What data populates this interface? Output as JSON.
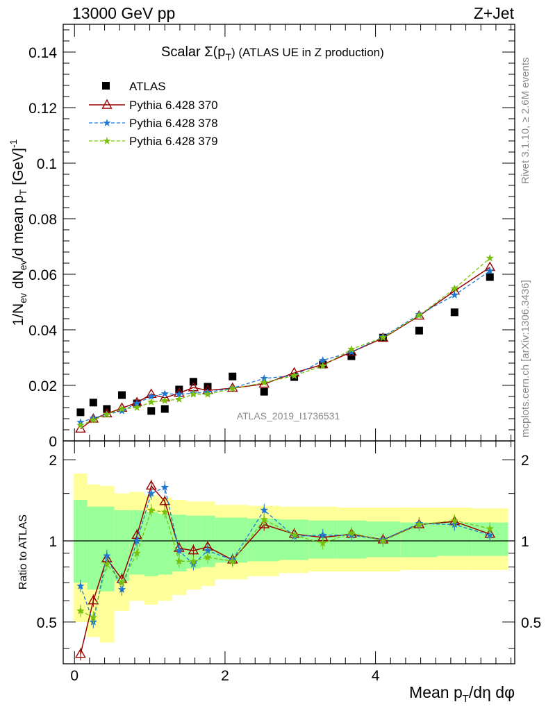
{
  "header": {
    "left": "13000 GeV pp",
    "right": "Z+Jet"
  },
  "side_text": {
    "rivet": "Rivet 3.1.10, ≥ 2.6M events",
    "mcplots": "mcplots.cern.ch [arXiv:1306.3436]"
  },
  "watermark": "ATLAS_2019_I1736531",
  "colors": {
    "data": "#000000",
    "s370": "#990000",
    "s378": "#1f77d4",
    "s379": "#79c00a",
    "band_inner": "#99ff99",
    "band_outer": "#ffff99"
  },
  "chart_data": [
    {
      "type": "scatter",
      "title": "Scalar Σ(p_T) (ATLAS UE in Z production)",
      "title_parts": {
        "a": "Scalar ",
        "sigma": "Σ(p",
        "sub": "T",
        "b": ") (ATLAS UE in Z production)"
      },
      "ylabel": "1/N_ev dN_ev/d mean p_T [GeV]^-1",
      "ylabel_parts": {
        "a": "1/N",
        "s1": "ev",
        "b": " dN",
        "s2": "ev",
        "c": "/d mean p",
        "s3": "T",
        "d": " [GeV]",
        "sup": "-1"
      },
      "xlim": [
        -0.15,
        5.85
      ],
      "ylim": [
        0,
        0.15
      ],
      "yticks": [
        0,
        0.02,
        0.04,
        0.06,
        0.08,
        0.1,
        0.12,
        0.14
      ],
      "ytick_labels": [
        "0",
        "0.02",
        "0.04",
        "0.06",
        "0.08",
        "0.1",
        "0.12",
        "0.14"
      ],
      "x": [
        0.08,
        0.25,
        0.43,
        0.63,
        0.83,
        1.02,
        1.2,
        1.39,
        1.58,
        1.77,
        2.1,
        2.52,
        2.92,
        3.3,
        3.68,
        4.1,
        4.58,
        5.05,
        5.52
      ],
      "series": [
        {
          "name": "ATLAS",
          "marker": "square",
          "values": [
            0.0103,
            0.0138,
            0.0115,
            0.0165,
            0.0135,
            0.0108,
            0.0115,
            0.0185,
            0.0213,
            0.0195,
            0.0232,
            0.0177,
            0.023,
            0.0275,
            0.0305,
            0.0372,
            0.0397,
            0.0463,
            0.059
          ]
        },
        {
          "name": "Pythia 6.428 370",
          "marker": "triangle",
          "values": [
            0.0043,
            0.0079,
            0.0098,
            0.0118,
            0.0138,
            0.0168,
            0.0155,
            0.0172,
            0.0192,
            0.0182,
            0.019,
            0.0205,
            0.0245,
            0.0275,
            0.032,
            0.037,
            0.045,
            0.054,
            0.0625
          ]
        },
        {
          "name": "Pythia 6.428 378",
          "marker": "star",
          "values": [
            0.0067,
            0.0082,
            0.0095,
            0.0108,
            0.0135,
            0.016,
            0.017,
            0.0168,
            0.0172,
            0.0175,
            0.019,
            0.0225,
            0.0235,
            0.029,
            0.032,
            0.0375,
            0.0455,
            0.0525,
            0.0612
          ]
        },
        {
          "name": "Pythia 6.428 379",
          "marker": "star",
          "values": [
            0.0056,
            0.0075,
            0.0095,
            0.0115,
            0.012,
            0.014,
            0.0145,
            0.015,
            0.0168,
            0.0168,
            0.0188,
            0.021,
            0.0235,
            0.027,
            0.033,
            0.0372,
            0.0452,
            0.0548,
            0.0658
          ]
        }
      ]
    },
    {
      "type": "line",
      "ylabel": "Ratio to ATLAS",
      "xlabel": "Mean p_T/dη dφ",
      "xlabel_parts": {
        "a": "Mean p",
        "sub": "T",
        "b": "/dη dφ"
      },
      "xlim": [
        -0.15,
        5.85
      ],
      "ylim": [
        0.35,
        2.35
      ],
      "log_y": true,
      "xticks": [
        0,
        2,
        4
      ],
      "xtick_labels": [
        "0",
        "2",
        "4"
      ],
      "yticks": [
        0.5,
        1,
        2
      ],
      "ytick_labels": [
        "0.5",
        "1",
        "2"
      ],
      "bins": [
        [
          -0.01,
          0.17
        ],
        [
          0.17,
          0.34
        ],
        [
          0.34,
          0.53
        ],
        [
          0.53,
          0.73
        ],
        [
          0.73,
          0.93
        ],
        [
          0.93,
          1.11
        ],
        [
          1.11,
          1.3
        ],
        [
          1.3,
          1.49
        ],
        [
          1.49,
          1.68
        ],
        [
          1.68,
          1.87
        ],
        [
          1.87,
          2.3
        ],
        [
          2.3,
          2.72
        ],
        [
          2.72,
          3.11
        ],
        [
          3.11,
          3.49
        ],
        [
          3.49,
          3.88
        ],
        [
          3.88,
          4.33
        ],
        [
          4.33,
          4.82
        ],
        [
          4.82,
          5.28
        ],
        [
          5.28,
          5.76
        ]
      ],
      "band_outer": [
        [
          0.5,
          1.78
        ],
        [
          0.44,
          1.62
        ],
        [
          0.42,
          1.6
        ],
        [
          0.55,
          1.5
        ],
        [
          0.6,
          1.52
        ],
        [
          0.58,
          1.48
        ],
        [
          0.6,
          1.45
        ],
        [
          0.63,
          1.42
        ],
        [
          0.66,
          1.4
        ],
        [
          0.68,
          1.4
        ],
        [
          0.72,
          1.36
        ],
        [
          0.74,
          1.35
        ],
        [
          0.76,
          1.34
        ],
        [
          0.77,
          1.34
        ],
        [
          0.77,
          1.33
        ],
        [
          0.77,
          1.33
        ],
        [
          0.78,
          1.33
        ],
        [
          0.78,
          1.33
        ],
        [
          0.78,
          1.32
        ]
      ],
      "band_inner": [
        [
          0.7,
          1.42
        ],
        [
          0.66,
          1.34
        ],
        [
          0.65,
          1.34
        ],
        [
          0.71,
          1.3
        ],
        [
          0.75,
          1.3
        ],
        [
          0.74,
          1.28
        ],
        [
          0.75,
          1.26
        ],
        [
          0.77,
          1.25
        ],
        [
          0.79,
          1.24
        ],
        [
          0.8,
          1.24
        ],
        [
          0.83,
          1.22
        ],
        [
          0.84,
          1.21
        ],
        [
          0.85,
          1.2
        ],
        [
          0.86,
          1.19
        ],
        [
          0.86,
          1.19
        ],
        [
          0.87,
          1.18
        ],
        [
          0.87,
          1.17
        ],
        [
          0.88,
          1.17
        ],
        [
          0.88,
          1.17
        ]
      ],
      "x": [
        0.08,
        0.25,
        0.43,
        0.63,
        0.83,
        1.02,
        1.2,
        1.39,
        1.58,
        1.77,
        2.1,
        2.52,
        2.92,
        3.3,
        3.68,
        4.1,
        4.58,
        5.05,
        5.52
      ],
      "series": [
        {
          "name": "Pythia 6.428 370",
          "marker": "triangle",
          "values": [
            0.38,
            0.6,
            0.86,
            0.72,
            1.05,
            1.6,
            1.4,
            0.94,
            0.92,
            0.95,
            0.85,
            1.15,
            1.06,
            1.03,
            1.06,
            1.01,
            1.15,
            1.18,
            1.06
          ]
        },
        {
          "name": "Pythia 6.428 378",
          "marker": "star",
          "values": [
            0.68,
            0.5,
            0.88,
            0.66,
            1.0,
            1.5,
            1.58,
            0.92,
            0.82,
            0.92,
            0.85,
            1.3,
            1.04,
            1.05,
            1.05,
            1.01,
            1.16,
            1.15,
            1.05
          ]
        },
        {
          "name": "Pythia 6.428 379",
          "marker": "star",
          "values": [
            0.55,
            0.52,
            0.82,
            0.7,
            0.9,
            1.3,
            1.28,
            0.84,
            0.84,
            0.87,
            0.84,
            1.2,
            1.05,
            0.98,
            1.07,
            1.0,
            1.15,
            1.19,
            1.11
          ]
        }
      ]
    }
  ]
}
